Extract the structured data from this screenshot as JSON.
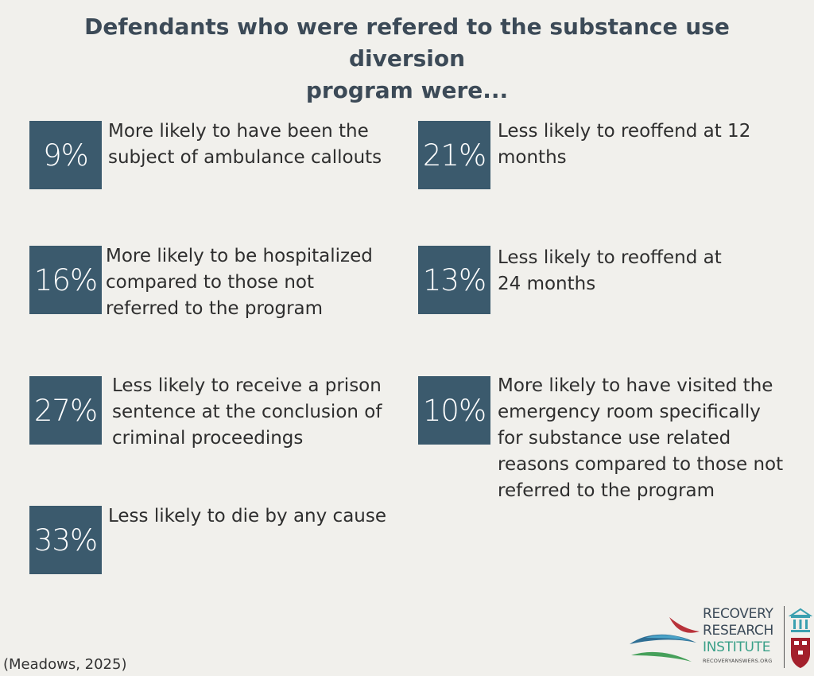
{
  "title": {
    "line1": "Defendants who were refered to the substance use diversion",
    "line2": "program were..."
  },
  "stats": [
    {
      "value": "9%",
      "text": "More likely to have been the subject of ambulance callouts"
    },
    {
      "value": "21%",
      "text": "Less likely to reoffend at 12 months"
    },
    {
      "value": "16%",
      "text": "More likely to be hospitalized compared to those not referred to the program"
    },
    {
      "value": "13%",
      "text": "Less likely to reoffend at 24 months"
    },
    {
      "value": "27%",
      "text": "Less likely to receive a prison sentence at the conclusion of criminal proceedings"
    },
    {
      "value": "10%",
      "text": "More likely to have visited the emergency room specifically for substance use related reasons compared to those not referred to the program"
    },
    {
      "value": "33%",
      "text": "Less likely to die by any cause"
    }
  ],
  "citation": "(Meadows, 2025)",
  "logo": {
    "line1": "RECOVERY",
    "line2": "RESEARCH",
    "line3": "INSTITUTE",
    "url": "RECOVERYANSWERS.ORG"
  },
  "colors": {
    "background": "#f1f0ec",
    "box": "#3b5a6d",
    "title": "#3c4a57",
    "institute": "#3aa088"
  }
}
